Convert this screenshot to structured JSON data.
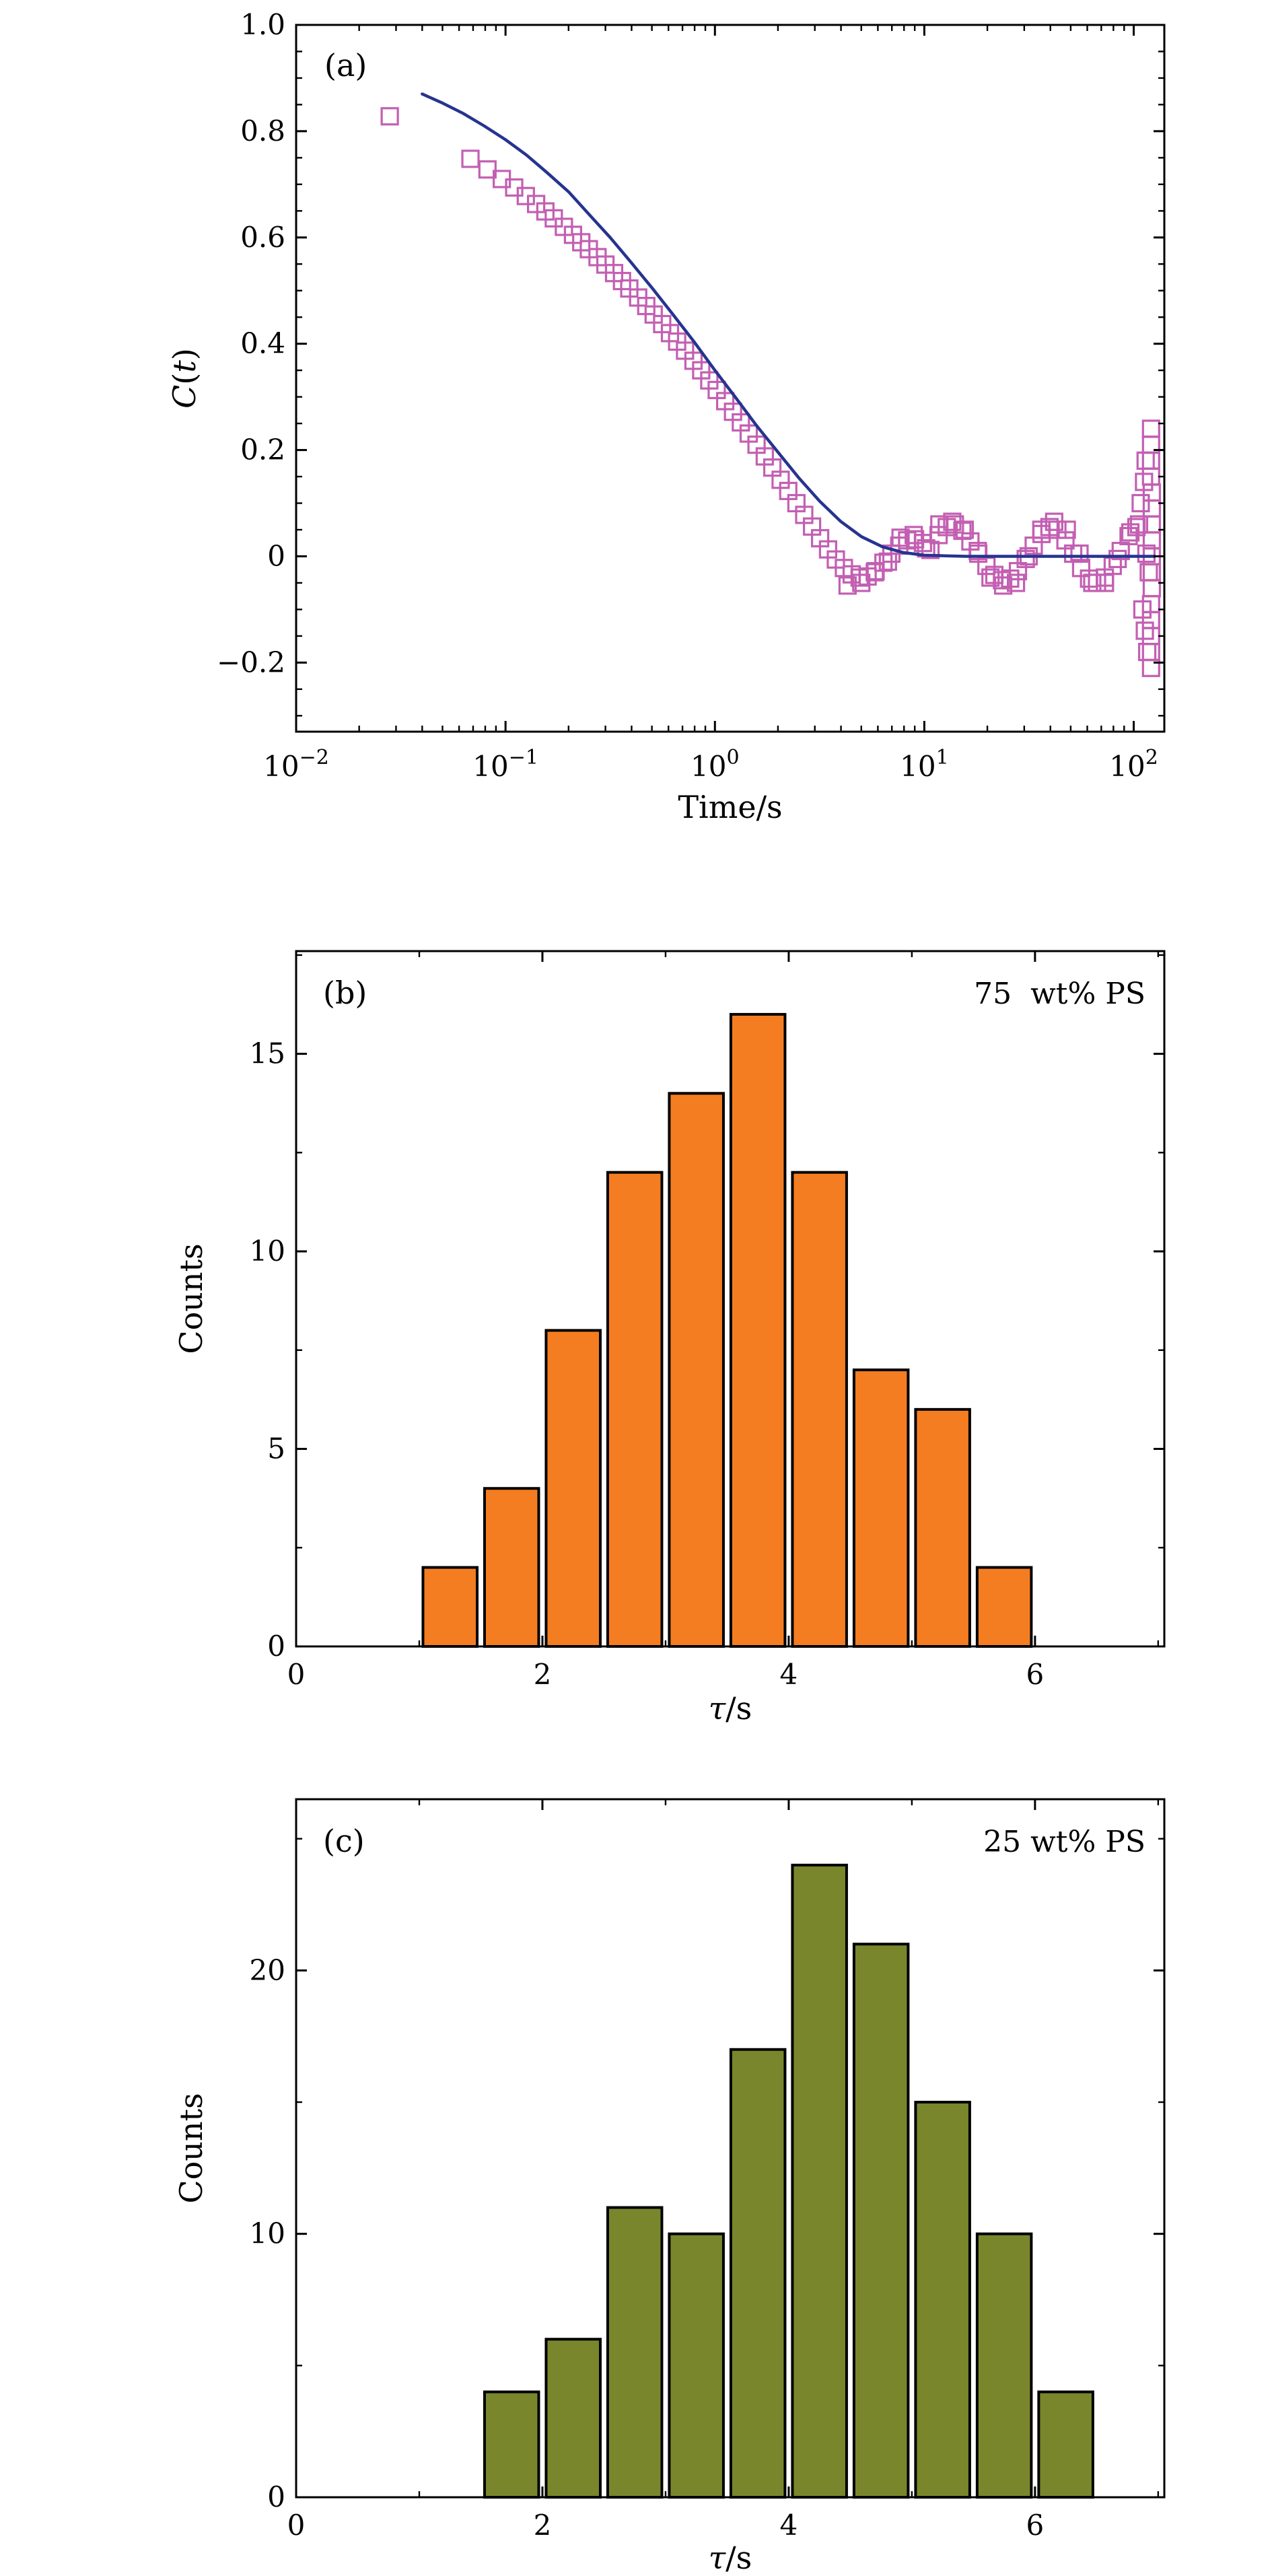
{
  "figure": {
    "background": "#ffffff"
  },
  "chart_data": [
    {
      "id": "panel-a",
      "type": "scatter",
      "panel_label": "(a)",
      "xlabel": "Time/s",
      "ylabel_parts": [
        "C",
        "(",
        "t",
        ")"
      ],
      "xscale": "log",
      "xlim": [
        0.01,
        140
      ],
      "ylim": [
        -0.33,
        1.0
      ],
      "xticks_log": [
        -2,
        -1,
        0,
        1,
        2
      ],
      "yticks": [
        -0.2,
        0.0,
        0.2,
        0.4,
        0.6,
        0.8,
        1.0
      ],
      "y_minor": 0.05,
      "marker_color": "#c35fb2",
      "line_color": "#26348f",
      "scatter": [
        [
          0.028,
          0.828
        ],
        [
          0.068,
          0.748
        ],
        [
          0.082,
          0.728
        ],
        [
          0.096,
          0.71
        ],
        [
          0.11,
          0.694
        ],
        [
          0.125,
          0.678
        ],
        [
          0.14,
          0.663
        ],
        [
          0.155,
          0.649
        ],
        [
          0.17,
          0.636
        ],
        [
          0.19,
          0.62
        ],
        [
          0.21,
          0.605
        ],
        [
          0.23,
          0.591
        ],
        [
          0.25,
          0.578
        ],
        [
          0.275,
          0.563
        ],
        [
          0.3,
          0.549
        ],
        [
          0.33,
          0.533
        ],
        [
          0.36,
          0.518
        ],
        [
          0.39,
          0.504
        ],
        [
          0.43,
          0.487
        ],
        [
          0.47,
          0.471
        ],
        [
          0.51,
          0.455
        ],
        [
          0.56,
          0.437
        ],
        [
          0.61,
          0.42
        ],
        [
          0.66,
          0.404
        ],
        [
          0.72,
          0.387
        ],
        [
          0.79,
          0.368
        ],
        [
          0.86,
          0.35
        ],
        [
          0.94,
          0.331
        ],
        [
          1.02,
          0.313
        ],
        [
          1.12,
          0.292
        ],
        [
          1.22,
          0.272
        ],
        [
          1.33,
          0.252
        ],
        [
          1.45,
          0.231
        ],
        [
          1.58,
          0.21
        ],
        [
          1.73,
          0.188
        ],
        [
          1.88,
          0.167
        ],
        [
          2.06,
          0.144
        ],
        [
          2.24,
          0.123
        ],
        [
          2.45,
          0.1
        ],
        [
          2.67,
          0.078
        ],
        [
          2.91,
          0.056
        ],
        [
          3.18,
          0.034
        ],
        [
          3.47,
          0.013
        ],
        [
          3.78,
          -0.006
        ],
        [
          4.13,
          -0.022
        ],
        [
          4.5,
          -0.034
        ],
        [
          4.91,
          -0.04
        ],
        [
          5.36,
          -0.038
        ],
        [
          5.85,
          -0.028
        ],
        [
          6.38,
          -0.012
        ],
        [
          6.96,
          0.005
        ],
        [
          7.59,
          0.02
        ],
        [
          8.28,
          0.03
        ],
        [
          9.03,
          0.032
        ],
        [
          9.85,
          0.025
        ],
        [
          10.7,
          0.012
        ],
        [
          11.7,
          0.04
        ],
        [
          12.8,
          0.055
        ],
        [
          14.0,
          0.06
        ],
        [
          15.2,
          0.048
        ],
        [
          16.6,
          0.028
        ],
        [
          18.1,
          0.005
        ],
        [
          19.8,
          -0.018
        ],
        [
          21.6,
          -0.035
        ],
        [
          23.5,
          -0.045
        ],
        [
          25.7,
          -0.042
        ],
        [
          28.0,
          -0.028
        ],
        [
          30.5,
          -0.005
        ],
        [
          33.3,
          0.02
        ],
        [
          36.3,
          0.042
        ],
        [
          39.6,
          0.055
        ],
        [
          43.2,
          0.05
        ],
        [
          47.2,
          0.03
        ],
        [
          51.4,
          0.005
        ],
        [
          56.1,
          -0.022
        ],
        [
          61.2,
          -0.042
        ],
        [
          66.8,
          -0.05
        ],
        [
          72.8,
          -0.04
        ],
        [
          79.4,
          -0.018
        ],
        [
          86.7,
          0.01
        ],
        [
          94.5,
          0.038
        ],
        [
          103,
          0.055
        ],
        [
          108,
          0.1
        ],
        [
          110,
          -0.1
        ],
        [
          112,
          0.14
        ],
        [
          113,
          -0.14
        ],
        [
          114,
          0.18
        ],
        [
          116,
          -0.18
        ],
        [
          115,
          0.005
        ],
        [
          118,
          -0.03
        ],
        [
          4.3,
          -0.055
        ],
        [
          5.0,
          -0.05
        ],
        [
          5.8,
          -0.03
        ],
        [
          6.7,
          -0.01
        ],
        [
          7.7,
          0.035
        ],
        [
          8.9,
          0.04
        ],
        [
          10.2,
          0.015
        ],
        [
          11.8,
          0.06
        ],
        [
          13.6,
          0.065
        ],
        [
          15.6,
          0.05
        ],
        [
          18.0,
          0.01
        ],
        [
          20.7,
          -0.04
        ],
        [
          23.8,
          -0.055
        ],
        [
          27.4,
          -0.05
        ],
        [
          31.5,
          0.0
        ],
        [
          36.2,
          0.05
        ],
        [
          41.7,
          0.065
        ],
        [
          47.9,
          0.05
        ],
        [
          55.1,
          0.005
        ],
        [
          63.4,
          -0.05
        ],
        [
          72.9,
          -0.05
        ],
        [
          83.8,
          -0.005
        ],
        [
          96.4,
          0.045
        ],
        [
          106,
          0.06
        ],
        [
          121,
          0.24
        ],
        [
          121,
          0.21
        ],
        [
          121,
          0.18
        ],
        [
          121,
          0.15
        ],
        [
          122,
          0.12
        ],
        [
          122,
          0.09
        ],
        [
          122,
          0.06
        ],
        [
          122,
          0.03
        ],
        [
          122,
          0.0
        ],
        [
          122,
          -0.03
        ],
        [
          122,
          -0.06
        ],
        [
          121,
          -0.09
        ],
        [
          121,
          -0.12
        ],
        [
          121,
          -0.15
        ],
        [
          121,
          -0.18
        ],
        [
          121,
          -0.21
        ]
      ],
      "fit_line": [
        [
          0.04,
          0.87
        ],
        [
          0.05,
          0.853
        ],
        [
          0.063,
          0.833
        ],
        [
          0.079,
          0.81
        ],
        [
          0.1,
          0.784
        ],
        [
          0.126,
          0.755
        ],
        [
          0.158,
          0.722
        ],
        [
          0.2,
          0.686
        ],
        [
          0.251,
          0.643
        ],
        [
          0.316,
          0.6
        ],
        [
          0.398,
          0.553
        ],
        [
          0.501,
          0.505
        ],
        [
          0.631,
          0.455
        ],
        [
          0.794,
          0.404
        ],
        [
          1.0,
          0.35
        ],
        [
          1.26,
          0.298
        ],
        [
          1.58,
          0.246
        ],
        [
          2.0,
          0.196
        ],
        [
          2.51,
          0.148
        ],
        [
          3.16,
          0.104
        ],
        [
          3.98,
          0.066
        ],
        [
          5.01,
          0.037
        ],
        [
          6.31,
          0.018
        ],
        [
          7.94,
          0.007
        ],
        [
          10.0,
          0.002
        ],
        [
          12.6,
          0.001
        ],
        [
          15.8,
          0.0
        ],
        [
          25.0,
          0.0
        ],
        [
          50.0,
          0.0
        ],
        [
          90.0,
          0.0
        ],
        [
          126,
          0.0
        ]
      ]
    },
    {
      "id": "panel-b",
      "type": "bar",
      "panel_label": "(b)",
      "annotation": "75  wt% PS",
      "xlabel_parts": [
        "τ",
        "/s"
      ],
      "ylabel": "Counts",
      "xlim": [
        0,
        7.05
      ],
      "ylim": [
        0,
        17.6
      ],
      "xticks": [
        0,
        2,
        4,
        6
      ],
      "yticks": [
        0,
        5,
        10,
        15
      ],
      "x_minor": 1,
      "y_minor": 2.5,
      "bar_color": "#f47d21",
      "bar_width": 0.44,
      "centers": [
        1.25,
        1.75,
        2.25,
        2.75,
        3.25,
        3.75,
        4.25,
        4.75,
        5.25,
        5.75
      ],
      "values": [
        2,
        4,
        8,
        12,
        14,
        16,
        12,
        7,
        6,
        2
      ]
    },
    {
      "id": "panel-c",
      "type": "bar",
      "panel_label": "(c)",
      "annotation": "25 wt% PS",
      "xlabel_parts": [
        "τ",
        "/s"
      ],
      "ylabel": "Counts",
      "xlim": [
        0,
        7.05
      ],
      "ylim": [
        0,
        26.5
      ],
      "xticks": [
        0,
        2,
        4,
        6
      ],
      "yticks": [
        0,
        10,
        20
      ],
      "x_minor": 1,
      "y_minor": 5,
      "bar_color": "#79862c",
      "bar_width": 0.44,
      "centers": [
        1.75,
        2.25,
        2.75,
        3.25,
        3.75,
        4.25,
        4.75,
        5.25,
        5.75,
        6.25
      ],
      "values": [
        4,
        6,
        11,
        10,
        17,
        24,
        21,
        15,
        10,
        4
      ]
    }
  ]
}
